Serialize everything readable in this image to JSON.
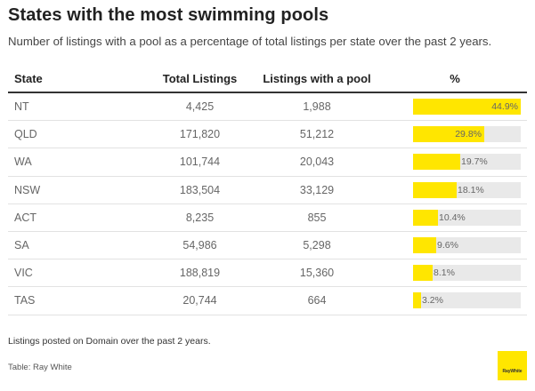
{
  "title": "States with the most swimming pools",
  "subtitle": "Number of listings with a pool as a percentage of total listings per state over the past 2 years.",
  "note": "Listings posted on Domain over the past 2 years.",
  "source": "Table: Ray White",
  "logo_text": "RayWhite",
  "colors": {
    "bar_fill": "#ffe600",
    "bar_track": "#e9e9e9",
    "header_rule": "#333333"
  },
  "chart_data": {
    "type": "table",
    "columns": [
      "State",
      "Total Listings",
      "Listings with a pool",
      "%"
    ],
    "rows": [
      {
        "state": "NT",
        "total": "4,425",
        "pool": "1,988",
        "pct": 44.9,
        "pct_label": "44.9%"
      },
      {
        "state": "QLD",
        "total": "171,820",
        "pool": "51,212",
        "pct": 29.8,
        "pct_label": "29.8%"
      },
      {
        "state": "WA",
        "total": "101,744",
        "pool": "20,043",
        "pct": 19.7,
        "pct_label": "19.7%"
      },
      {
        "state": "NSW",
        "total": "183,504",
        "pool": "33,129",
        "pct": 18.1,
        "pct_label": "18.1%"
      },
      {
        "state": "ACT",
        "total": "8,235",
        "pool": "855",
        "pct": 10.4,
        "pct_label": "10.4%"
      },
      {
        "state": "SA",
        "total": "54,986",
        "pool": "5,298",
        "pct": 9.6,
        "pct_label": "9.6%"
      },
      {
        "state": "VIC",
        "total": "188,819",
        "pool": "15,360",
        "pct": 8.1,
        "pct_label": "8.1%"
      },
      {
        "state": "TAS",
        "total": "20,744",
        "pool": "664",
        "pct": 3.2,
        "pct_label": "3.2%"
      }
    ],
    "pct_max": 44.9
  }
}
